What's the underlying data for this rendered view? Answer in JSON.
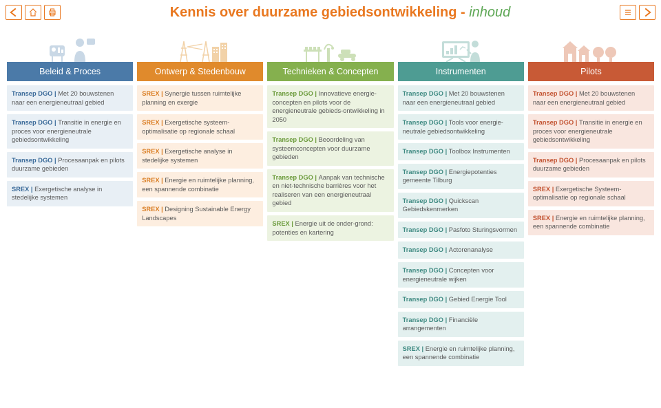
{
  "page_title_main": "Kennis over duurzame gebiedsontwikkeling - ",
  "page_title_sub": "inhoud",
  "colors": {
    "orange": "#e97820",
    "green": "#5fa857",
    "col1_header": "#4b7aa8",
    "col2_header": "#e08a2c",
    "col3_header": "#85b04e",
    "col4_header": "#4e9c93",
    "col5_header": "#c85a36"
  },
  "columns": [
    {
      "header": "Beleid & Proces",
      "header_bg": "#4b7aa8",
      "card_class": "card-blue",
      "items": [
        {
          "prefix": "Transep DGO",
          "text": "Met 20 bouwstenen naar een energieneutraal gebied"
        },
        {
          "prefix": "Transep DGO",
          "text": "Transitie in energie en proces voor energieneutrale gebiedsontwikkeling"
        },
        {
          "prefix": "Transep DGO",
          "text": "Procesaanpak en pilots duurzame gebieden"
        },
        {
          "prefix": "SREX",
          "text": "Exergetische analyse in stedelijke systemen"
        }
      ]
    },
    {
      "header": "Ontwerp & Stedenbouw",
      "header_bg": "#e08a2c",
      "card_class": "card-orange",
      "items": [
        {
          "prefix": "SREX",
          "text": "Synergie tussen ruimtelijke planning en exergie"
        },
        {
          "prefix": "SREX",
          "text": "Exergetische systeem-optimalisatie op regionale schaal"
        },
        {
          "prefix": "SREX",
          "text": "Exergetische analyse in stedelijke systemen"
        },
        {
          "prefix": "SREX",
          "text": "Energie en ruimtelijke planning, een spannende combinatie"
        },
        {
          "prefix": "SREX",
          "text": "Designing Sustainable Energy Landscapes"
        }
      ]
    },
    {
      "header": "Technieken & Concepten",
      "header_bg": "#85b04e",
      "card_class": "card-green",
      "items": [
        {
          "prefix": "Transep DGO",
          "text": "Innovatieve energie-concepten en pilots voor de energieneutrale gebieds-ontwikkeling in 2050"
        },
        {
          "prefix": "Transep DGO",
          "text": "Beoordeling van systeemconcepten voor duurzame gebieden"
        },
        {
          "prefix": "Transep DGO",
          "text": "Aanpak van technische en niet-technische barrières voor het realiseren van een energieneutraal gebied"
        },
        {
          "prefix": "SREX",
          "text": "Energie uit de onder-grond: potenties en kartering"
        }
      ]
    },
    {
      "header": "Instrumenten",
      "header_bg": "#4e9c93",
      "card_class": "card-teal",
      "items": [
        {
          "prefix": "Transep DGO",
          "text": "Met 20 bouwstenen naar een energieneutraal gebied"
        },
        {
          "prefix": "Transep DGO",
          "text": "Tools voor energie-neutrale gebiedsontwikkeling"
        },
        {
          "prefix": "Transep DGO",
          "text": "Toolbox Instrumenten"
        },
        {
          "prefix": "Transep DGO",
          "text": "Energiepotenties gemeente Tilburg"
        },
        {
          "prefix": "Transep DGO",
          "text": "Quickscan Gebiedskenmerken"
        },
        {
          "prefix": "Transep DGO",
          "text": "Pasfoto Sturingsvormen"
        },
        {
          "prefix": "Transep DGO",
          "text": "Actorenanalyse"
        },
        {
          "prefix": "Transep DGO",
          "text": "Concepten voor energieneutrale wijken"
        },
        {
          "prefix": "Transep DGO",
          "text": "Gebied Energie Tool"
        },
        {
          "prefix": "Transep DGO",
          "text": "Financiële arrangementen"
        },
        {
          "prefix": "SREX",
          "text": "Energie en ruimtelijke planning, een spannende combinatie"
        }
      ]
    },
    {
      "header": "Pilots",
      "header_bg": "#c85a36",
      "card_class": "card-red",
      "items": [
        {
          "prefix": "Transep DGO",
          "text": "Met 20 bouwstenen naar een energieneutraal gebied"
        },
        {
          "prefix": "Transep DGO",
          "text": "Transitie in energie en proces voor energieneutrale gebiedsontwikkeling"
        },
        {
          "prefix": "Transep DGO",
          "text": "Procesaanpak en pilots duurzame gebieden"
        },
        {
          "prefix": "SREX",
          "text": "Exergetische Systeem-optimalisatie op regionale schaal"
        },
        {
          "prefix": "SREX",
          "text": "Energie en ruimtelijke planning, een spannende combinatie"
        }
      ]
    }
  ]
}
